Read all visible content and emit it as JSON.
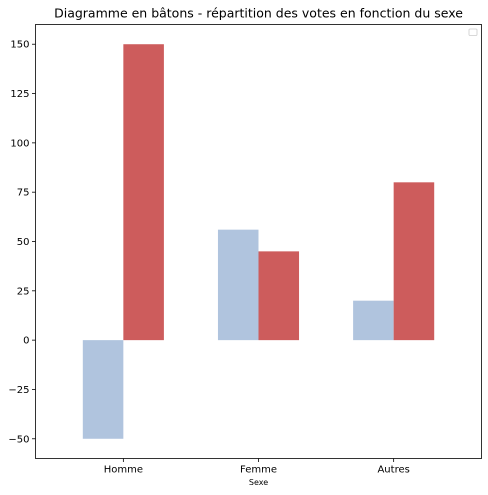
{
  "chart_data": {
    "type": "bar",
    "title": "Diagramme en bâtons - répartition des votes en fonction du sexe",
    "xlabel": "Sexe",
    "ylabel": "",
    "categories": [
      "Homme",
      "Femme",
      "Autres"
    ],
    "series": [
      {
        "values": [
          -50,
          56,
          20
        ],
        "color": "#b0c4de"
      },
      {
        "values": [
          150,
          45,
          80
        ],
        "color": "#cd5c5c"
      }
    ],
    "ylim": [
      -60,
      160
    ],
    "yticks": [
      -50,
      -25,
      0,
      25,
      50,
      75,
      100,
      125,
      150
    ],
    "ytick_labels": [
      "−50",
      "−25",
      "0",
      "25",
      "50",
      "75",
      "100",
      "125",
      "150"
    ],
    "grid": false,
    "legend": {
      "placement": "top-right",
      "entries": []
    }
  }
}
